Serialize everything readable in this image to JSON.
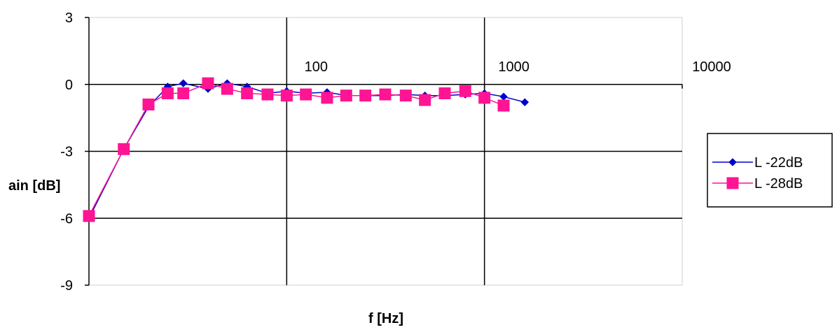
{
  "chart_data": {
    "type": "line",
    "xlabel": "f [Hz]",
    "ylabel": "ain [dB]",
    "x_scale": "log",
    "xlim": [
      10,
      10000
    ],
    "ylim": [
      -9,
      3
    ],
    "x_ticks": [
      {
        "value": 100,
        "label": "100"
      },
      {
        "value": 1000,
        "label": "1000"
      },
      {
        "value": 10000,
        "label": "10000"
      }
    ],
    "y_ticks": [
      {
        "value": 3,
        "label": "3"
      },
      {
        "value": 0,
        "label": "0"
      },
      {
        "value": -3,
        "label": "-3"
      },
      {
        "value": -6,
        "label": "-6"
      },
      {
        "value": -9,
        "label": "-9"
      }
    ],
    "grid": "major",
    "legend_position": "right",
    "series": [
      {
        "name": "L -22dB",
        "color": "#0000cc",
        "marker": "diamond",
        "points": [
          [
            10,
            -6.0
          ],
          [
            15,
            -2.9
          ],
          [
            20,
            -1.0
          ],
          [
            25,
            -0.1
          ],
          [
            30,
            0.05
          ],
          [
            40,
            -0.2
          ],
          [
            50,
            0.05
          ],
          [
            63,
            -0.1
          ],
          [
            80,
            -0.4
          ],
          [
            100,
            -0.3
          ],
          [
            125,
            -0.4
          ],
          [
            160,
            -0.35
          ],
          [
            200,
            -0.5
          ],
          [
            250,
            -0.5
          ],
          [
            315,
            -0.5
          ],
          [
            400,
            -0.45
          ],
          [
            500,
            -0.5
          ],
          [
            630,
            -0.5
          ],
          [
            800,
            -0.45
          ],
          [
            1000,
            -0.4
          ],
          [
            1250,
            -0.55
          ],
          [
            1600,
            -0.8
          ]
        ]
      },
      {
        "name": "L -28dB",
        "color": "#ff1493",
        "marker": "square",
        "points": [
          [
            10,
            -5.9
          ],
          [
            15,
            -2.9
          ],
          [
            20,
            -0.9
          ],
          [
            25,
            -0.4
          ],
          [
            30,
            -0.4
          ],
          [
            40,
            0.05
          ],
          [
            50,
            -0.2
          ],
          [
            63,
            -0.4
          ],
          [
            80,
            -0.45
          ],
          [
            100,
            -0.5
          ],
          [
            125,
            -0.45
          ],
          [
            160,
            -0.6
          ],
          [
            200,
            -0.5
          ],
          [
            250,
            -0.5
          ],
          [
            315,
            -0.45
          ],
          [
            400,
            -0.5
          ],
          [
            500,
            -0.7
          ],
          [
            630,
            -0.4
          ],
          [
            800,
            -0.3
          ],
          [
            1000,
            -0.6
          ],
          [
            1250,
            -0.95
          ]
        ]
      }
    ]
  }
}
